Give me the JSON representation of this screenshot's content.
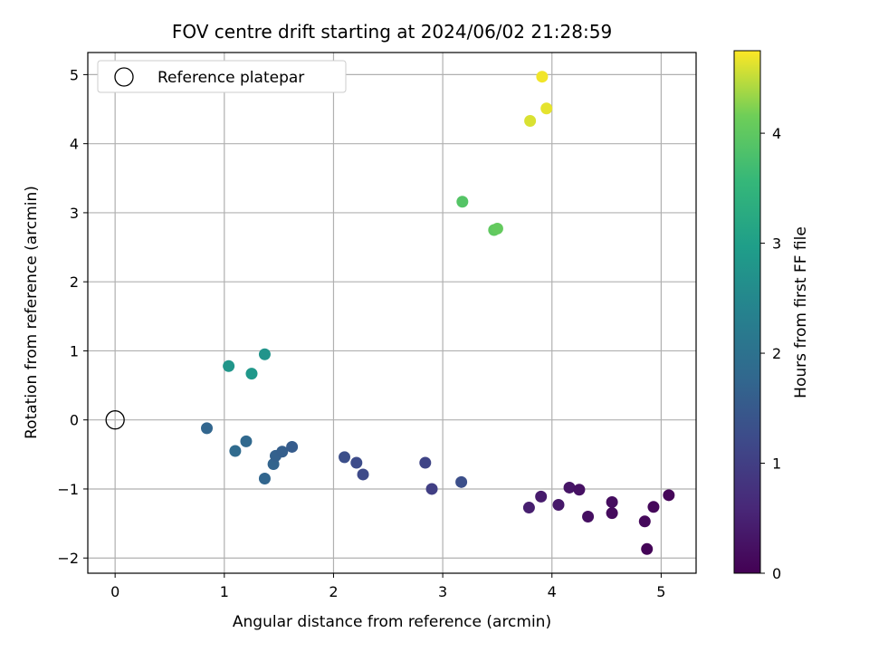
{
  "chart_data": {
    "type": "scatter",
    "title": "FOV centre drift starting at 2024/06/02 21:28:59",
    "xlabel": "Angular distance from reference (arcmin)",
    "ylabel": "Rotation from reference (arcmin)",
    "xlim": [
      -0.25,
      5.32
    ],
    "ylim": [
      -2.22,
      5.32
    ],
    "xticks": [
      0,
      1,
      2,
      3,
      4,
      5
    ],
    "yticks": [
      -2,
      -1,
      0,
      1,
      2,
      3,
      4,
      5
    ],
    "grid": true,
    "legend": {
      "placement": "top-left",
      "entries": [
        "Reference platepar"
      ]
    },
    "reference_point": {
      "label": "Reference platepar",
      "x": 0,
      "y": 0
    },
    "colorbar": {
      "label": "Hours from first FF file",
      "colormap": "viridis",
      "range": [
        0,
        4.75
      ],
      "ticks": [
        0,
        1,
        2,
        3,
        4
      ]
    },
    "points": [
      {
        "x": 0.84,
        "y": -0.12,
        "hours": 1.75
      },
      {
        "x": 1.1,
        "y": -0.45,
        "hours": 1.85
      },
      {
        "x": 1.2,
        "y": -0.31,
        "hours": 1.8
      },
      {
        "x": 1.37,
        "y": -0.85,
        "hours": 1.75
      },
      {
        "x": 1.45,
        "y": -0.64,
        "hours": 1.7
      },
      {
        "x": 1.47,
        "y": -0.52,
        "hours": 1.65
      },
      {
        "x": 1.53,
        "y": -0.46,
        "hours": 1.6
      },
      {
        "x": 1.62,
        "y": -0.39,
        "hours": 1.55
      },
      {
        "x": 2.1,
        "y": -0.54,
        "hours": 1.3
      },
      {
        "x": 2.21,
        "y": -0.62,
        "hours": 1.25
      },
      {
        "x": 2.27,
        "y": -0.79,
        "hours": 1.2
      },
      {
        "x": 2.84,
        "y": -0.62,
        "hours": 1.1
      },
      {
        "x": 2.9,
        "y": -1.0,
        "hours": 1.0
      },
      {
        "x": 3.17,
        "y": -0.9,
        "hours": 1.3
      },
      {
        "x": 3.79,
        "y": -1.27,
        "hours": 0.45
      },
      {
        "x": 3.9,
        "y": -1.11,
        "hours": 0.4
      },
      {
        "x": 4.06,
        "y": -1.23,
        "hours": 0.35
      },
      {
        "x": 4.16,
        "y": -0.98,
        "hours": 0.3
      },
      {
        "x": 4.25,
        "y": -1.01,
        "hours": 0.25
      },
      {
        "x": 4.33,
        "y": -1.4,
        "hours": 0.22
      },
      {
        "x": 4.55,
        "y": -1.19,
        "hours": 0.18
      },
      {
        "x": 4.55,
        "y": -1.35,
        "hours": 0.15
      },
      {
        "x": 4.85,
        "y": -1.47,
        "hours": 0.12
      },
      {
        "x": 4.87,
        "y": -1.87,
        "hours": 0.05
      },
      {
        "x": 4.93,
        "y": -1.26,
        "hours": 0.1
      },
      {
        "x": 5.07,
        "y": -1.09,
        "hours": 0.08
      },
      {
        "x": 1.04,
        "y": 0.78,
        "hours": 2.8
      },
      {
        "x": 1.25,
        "y": 0.67,
        "hours": 2.85
      },
      {
        "x": 1.37,
        "y": 0.95,
        "hours": 2.75
      },
      {
        "x": 3.18,
        "y": 3.16,
        "hours": 3.9
      },
      {
        "x": 3.47,
        "y": 2.75,
        "hours": 4.0
      },
      {
        "x": 3.5,
        "y": 2.77,
        "hours": 4.05
      },
      {
        "x": 3.8,
        "y": 4.33,
        "hours": 4.6
      },
      {
        "x": 3.91,
        "y": 4.97,
        "hours": 4.7
      },
      {
        "x": 3.95,
        "y": 4.51,
        "hours": 4.65
      }
    ]
  }
}
